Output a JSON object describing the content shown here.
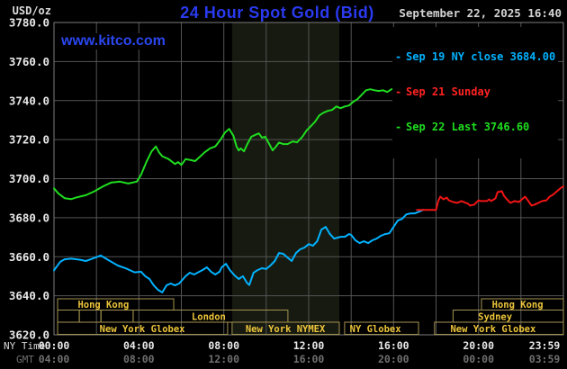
{
  "header": {
    "unit_label": "USD/oz",
    "title": "24 Hour Spot Gold (Bid)",
    "datetime": "September 22, 2025 16:40",
    "watermark": "www.kitco.com"
  },
  "legend": {
    "items": [
      {
        "dash": "-",
        "label": "Sep 19 NY close 3684.00",
        "color": "#00b2ff"
      },
      {
        "dash": "-",
        "label": "Sep 21 Sunday",
        "color": "#ff2222"
      },
      {
        "dash": "-",
        "label": "Sep 22 Last 3746.60",
        "color": "#1fdd1f"
      }
    ]
  },
  "colors": {
    "background": "#000000",
    "title_blue": "#2a3aee",
    "watermark_blue": "#2a46ee",
    "grid": "#545454",
    "border": "#7d7d7d",
    "band": "#171a10",
    "session_border": "#a3934f",
    "session_label": "#edc53a",
    "axis_text": "#e8e8e8",
    "gmt_text": "#6f6f6f",
    "series_green": "#1fdd1f",
    "series_cyan": "#00b2ff",
    "series_red": "#f01414"
  },
  "chart_data": {
    "type": "line",
    "title": "24 Hour Spot Gold (Bid)",
    "ylabel": "USD/oz",
    "ylim": [
      3620,
      3780
    ],
    "xlim_hours": [
      0,
      24
    ],
    "grid": {
      "x_interval_hours": 2,
      "y_interval": 20,
      "on": true
    },
    "y_ticks": [
      3780,
      3760,
      3740,
      3720,
      3700,
      3680,
      3660,
      3640,
      3620
    ],
    "x_axis": {
      "ny_row_label": "NY Time",
      "gmt_row_label": "GMT",
      "ticks": [
        {
          "ny": "00:00",
          "gmt": "04:00",
          "hour": 0
        },
        {
          "ny": "04:00",
          "gmt": "08:00",
          "hour": 4
        },
        {
          "ny": "08:00",
          "gmt": "12:00",
          "hour": 8
        },
        {
          "ny": "12:00",
          "gmt": "16:00",
          "hour": 12
        },
        {
          "ny": "16:00",
          "gmt": "20:00",
          "hour": 16
        },
        {
          "ny": "20:00",
          "gmt": "00:00",
          "hour": 20
        },
        {
          "ny": "23:59",
          "gmt": "03:59",
          "hour": 23.983
        }
      ]
    },
    "highlight_band_hours": [
      8.39,
      13.44
    ],
    "sessions": [
      {
        "row": 1,
        "label": "Hong Kong",
        "start_hour": 0.17,
        "end_hour": 5.64,
        "label_center_hour": 2.33
      },
      {
        "row": 1,
        "label": "Hong Kong",
        "start_hour": 20.14,
        "end_hour": 24,
        "label_center_hour": 21.84
      },
      {
        "row": 2,
        "label": "",
        "start_hour": 0.17,
        "end_hour": 1.19
      },
      {
        "row": 2,
        "label": "",
        "start_hour": 1.19,
        "end_hour": 2.21
      },
      {
        "row": 2,
        "label": "",
        "start_hour": 2.21,
        "end_hour": 3.73
      },
      {
        "row": 2,
        "label": "London",
        "start_hour": 3.73,
        "end_hour": 11.02,
        "label_center_hour": 7.29
      },
      {
        "row": 2,
        "label": "Sydney",
        "start_hour": 18.8,
        "end_hour": 24,
        "label_center_hour": 20.78
      },
      {
        "row": 3,
        "label": "New York Globex",
        "start_hour": 0.17,
        "end_hour": 8.18,
        "label_center_hour": 4.16
      },
      {
        "row": 3,
        "label": "New York NYMEX",
        "start_hour": 8.39,
        "end_hour": 13.44,
        "label_center_hour": 10.9
      },
      {
        "row": 3,
        "label": "NY Globex",
        "start_hour": 13.69,
        "end_hour": 17.17,
        "label_center_hour": 15.14
      },
      {
        "row": 3,
        "label": "New York Globex",
        "start_hour": 17.93,
        "end_hour": 24,
        "label_center_hour": 20.69
      }
    ],
    "series": [
      {
        "name": "Sep 19 NY close",
        "close_value": 3684.0,
        "color": "#00b2ff",
        "points": [
          [
            0,
            3653
          ],
          [
            0.3,
            3657.5
          ],
          [
            0.5,
            3658.7
          ],
          [
            0.8,
            3659
          ],
          [
            1.2,
            3658.5
          ],
          [
            1.5,
            3657.8
          ],
          [
            1.8,
            3659
          ],
          [
            2.2,
            3660.6
          ],
          [
            2.5,
            3658.7
          ],
          [
            3,
            3655.5
          ],
          [
            3.4,
            3654
          ],
          [
            3.8,
            3652
          ],
          [
            4.1,
            3652.3
          ],
          [
            4.3,
            3650
          ],
          [
            4.5,
            3648.6
          ],
          [
            4.7,
            3645.3
          ],
          [
            4.9,
            3643
          ],
          [
            5.1,
            3641.7
          ],
          [
            5.3,
            3645.3
          ],
          [
            5.5,
            3646.3
          ],
          [
            5.7,
            3645.3
          ],
          [
            5.9,
            3646.3
          ],
          [
            6.2,
            3650
          ],
          [
            6.4,
            3651.8
          ],
          [
            6.6,
            3650.9
          ],
          [
            7,
            3653.2
          ],
          [
            7.2,
            3654.6
          ],
          [
            7.4,
            3652.3
          ],
          [
            7.6,
            3650.9
          ],
          [
            7.8,
            3652.3
          ],
          [
            7.9,
            3654.6
          ],
          [
            8.1,
            3656.4
          ],
          [
            8.3,
            3653
          ],
          [
            8.5,
            3650.5
          ],
          [
            8.7,
            3648.6
          ],
          [
            8.9,
            3650
          ],
          [
            9.1,
            3646.5
          ],
          [
            9.2,
            3645.5
          ],
          [
            9.4,
            3651.8
          ],
          [
            9.6,
            3653.2
          ],
          [
            9.8,
            3654.1
          ],
          [
            10,
            3653.7
          ],
          [
            10.2,
            3655.5
          ],
          [
            10.4,
            3657.8
          ],
          [
            10.6,
            3661.9
          ],
          [
            10.8,
            3661.5
          ],
          [
            11,
            3659.6
          ],
          [
            11.2,
            3657.8
          ],
          [
            11.4,
            3661.9
          ],
          [
            11.6,
            3663.8
          ],
          [
            11.8,
            3664.7
          ],
          [
            12,
            3666.5
          ],
          [
            12.2,
            3665.6
          ],
          [
            12.4,
            3667.9
          ],
          [
            12.6,
            3673.9
          ],
          [
            12.8,
            3675.3
          ],
          [
            13,
            3671.6
          ],
          [
            13.2,
            3669.3
          ],
          [
            13.5,
            3670.2
          ],
          [
            13.7,
            3670.2
          ],
          [
            13.9,
            3671.6
          ],
          [
            14,
            3671.2
          ],
          [
            14.2,
            3668.4
          ],
          [
            14.4,
            3667
          ],
          [
            14.6,
            3667.9
          ],
          [
            14.8,
            3667
          ],
          [
            15,
            3668.4
          ],
          [
            15.2,
            3669.3
          ],
          [
            15.4,
            3670.7
          ],
          [
            15.6,
            3671.6
          ],
          [
            15.8,
            3672
          ],
          [
            16,
            3675.3
          ],
          [
            16.2,
            3678.5
          ],
          [
            16.4,
            3679.4
          ],
          [
            16.6,
            3681.7
          ],
          [
            16.8,
            3682.2
          ],
          [
            17,
            3682.2
          ],
          [
            17.2,
            3683.1
          ],
          [
            17.4,
            3684
          ]
        ]
      },
      {
        "name": "Sep 21 Sunday",
        "color": "#f01414",
        "points": [
          [
            17.1,
            3684
          ],
          [
            18,
            3684
          ],
          [
            18.1,
            3688.5
          ],
          [
            18.2,
            3690.8
          ],
          [
            18.35,
            3689.4
          ],
          [
            18.5,
            3690.3
          ],
          [
            18.6,
            3688.9
          ],
          [
            18.8,
            3688
          ],
          [
            19,
            3687.6
          ],
          [
            19.2,
            3688.5
          ],
          [
            19.5,
            3687.2
          ],
          [
            19.6,
            3686.2
          ],
          [
            19.8,
            3686.7
          ],
          [
            20,
            3688.9
          ],
          [
            20.1,
            3688.5
          ],
          [
            20.4,
            3688.5
          ],
          [
            20.5,
            3689.4
          ],
          [
            20.6,
            3688.5
          ],
          [
            20.8,
            3689.9
          ],
          [
            20.9,
            3693.1
          ],
          [
            21.1,
            3693.6
          ],
          [
            21.2,
            3691.2
          ],
          [
            21.3,
            3689.9
          ],
          [
            21.5,
            3687.6
          ],
          [
            21.7,
            3688.5
          ],
          [
            21.9,
            3688
          ],
          [
            22.1,
            3689.9
          ],
          [
            22.2,
            3690.8
          ],
          [
            22.35,
            3688.5
          ],
          [
            22.5,
            3686.2
          ],
          [
            22.65,
            3686.7
          ],
          [
            22.9,
            3688
          ],
          [
            23,
            3688.5
          ],
          [
            23.2,
            3688.9
          ],
          [
            23.35,
            3690.8
          ],
          [
            23.5,
            3691.7
          ],
          [
            23.65,
            3693.1
          ],
          [
            23.8,
            3694.5
          ],
          [
            23.9,
            3695.4
          ],
          [
            24,
            3696
          ]
        ]
      },
      {
        "name": "Sep 22 Last",
        "last_value": 3746.6,
        "color": "#1fdd1f",
        "points": [
          [
            0,
            3695
          ],
          [
            0.2,
            3692.5
          ],
          [
            0.5,
            3690
          ],
          [
            0.8,
            3689.5
          ],
          [
            1.1,
            3690.5
          ],
          [
            1.5,
            3691.5
          ],
          [
            1.9,
            3693.5
          ],
          [
            2.3,
            3696
          ],
          [
            2.7,
            3698
          ],
          [
            3.1,
            3698.5
          ],
          [
            3.5,
            3697.5
          ],
          [
            3.9,
            3698.5
          ],
          [
            4.1,
            3702
          ],
          [
            4.35,
            3708.5
          ],
          [
            4.6,
            3714
          ],
          [
            4.8,
            3716.5
          ],
          [
            4.95,
            3713.5
          ],
          [
            5.1,
            3711.5
          ],
          [
            5.4,
            3710
          ],
          [
            5.7,
            3707.5
          ],
          [
            5.85,
            3708.5
          ],
          [
            6,
            3707
          ],
          [
            6.2,
            3710
          ],
          [
            6.45,
            3709.5
          ],
          [
            6.65,
            3709
          ],
          [
            6.9,
            3711.5
          ],
          [
            7.1,
            3713.5
          ],
          [
            7.35,
            3715.5
          ],
          [
            7.6,
            3716.5
          ],
          [
            7.85,
            3720
          ],
          [
            8.05,
            3723.5
          ],
          [
            8.25,
            3725.5
          ],
          [
            8.45,
            3722
          ],
          [
            8.6,
            3716.5
          ],
          [
            8.7,
            3714.5
          ],
          [
            8.8,
            3715.5
          ],
          [
            8.95,
            3714
          ],
          [
            9.1,
            3717.5
          ],
          [
            9.3,
            3721.5
          ],
          [
            9.5,
            3722.5
          ],
          [
            9.65,
            3723.2
          ],
          [
            9.8,
            3721
          ],
          [
            9.95,
            3721.5
          ],
          [
            10.15,
            3717.5
          ],
          [
            10.3,
            3714.5
          ],
          [
            10.45,
            3716.3
          ],
          [
            10.6,
            3718.5
          ],
          [
            10.8,
            3717.7
          ],
          [
            11,
            3717.7
          ],
          [
            11.25,
            3719.1
          ],
          [
            11.45,
            3718.6
          ],
          [
            11.7,
            3721.4
          ],
          [
            11.9,
            3724.6
          ],
          [
            12.1,
            3726.9
          ],
          [
            12.3,
            3729.2
          ],
          [
            12.5,
            3732.4
          ],
          [
            12.7,
            3733.8
          ],
          [
            12.9,
            3734.7
          ],
          [
            13.1,
            3735.2
          ],
          [
            13.3,
            3737
          ],
          [
            13.5,
            3736.1
          ],
          [
            13.7,
            3737
          ],
          [
            13.9,
            3737.5
          ],
          [
            14.1,
            3739.4
          ],
          [
            14.3,
            3740.7
          ],
          [
            14.5,
            3743
          ],
          [
            14.7,
            3745.3
          ],
          [
            14.9,
            3745.8
          ],
          [
            15.1,
            3745.3
          ],
          [
            15.3,
            3744.9
          ],
          [
            15.5,
            3745.3
          ],
          [
            15.7,
            3744.4
          ],
          [
            15.9,
            3745.8
          ],
          [
            16.1,
            3746.2
          ],
          [
            16.3,
            3745.3
          ],
          [
            16.5,
            3746.6
          ]
        ]
      }
    ]
  }
}
